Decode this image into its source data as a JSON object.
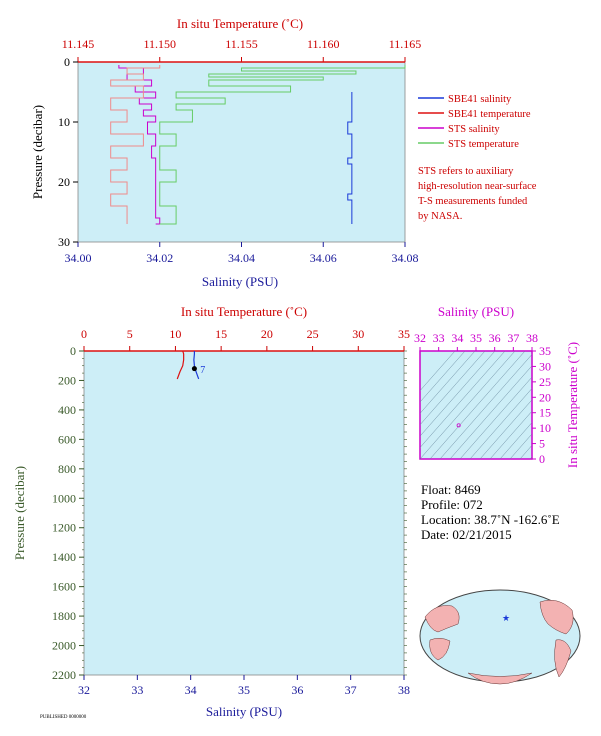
{
  "chart_data": [
    {
      "type": "line",
      "top_axis": {
        "label": "In situ Temperature (˚C)",
        "ticks": [
          "11.145",
          "11.150",
          "11.155",
          "11.160",
          "11.165"
        ],
        "range": [
          11.145,
          11.165
        ]
      },
      "bottom_axis": {
        "label": "Salinity (PSU)",
        "ticks": [
          "34.00",
          "34.02",
          "34.04",
          "34.06",
          "34.08"
        ],
        "range": [
          34.0,
          34.08
        ]
      },
      "left_axis": {
        "label": "Pressure (decibar)",
        "ticks": [
          "0",
          "10",
          "20",
          "30"
        ],
        "range": [
          0,
          30
        ],
        "inverted": true
      },
      "legend": {
        "placement": "right",
        "entries": [
          {
            "name": "SBE41 salinity",
            "color": "#1a3ad8"
          },
          {
            "name": "SBE41 temperature",
            "color": "#dd1111"
          },
          {
            "name": "STS salinity",
            "color": "#cc00cc"
          },
          {
            "name": "STS temperature",
            "color": "#66cc66"
          }
        ]
      },
      "note_lines": [
        "STS refers to auxiliary",
        "high-resolution near-surface",
        "T-S measurements funded",
        "by NASA."
      ],
      "series": [
        {
          "name": "SBE41 salinity",
          "x": [
            34.067,
            34.067,
            34.067,
            34.066,
            34.067,
            34.067,
            34.066,
            34.067,
            34.067,
            34.067,
            34.066,
            34.067,
            34.067,
            34.067,
            34.067
          ],
          "y": [
            5,
            6,
            8,
            10,
            12,
            14,
            16,
            17,
            18,
            20,
            22,
            23,
            24,
            26,
            27
          ]
        },
        {
          "name": "STS salinity",
          "x": [
            34.01,
            34.016,
            34.012,
            34.018,
            34.014,
            34.019,
            34.015,
            34.018,
            34.016,
            34.019,
            34.017,
            34.019,
            34.018,
            34.019,
            34.019,
            34.019,
            34.019,
            34.019,
            34.02,
            34.019
          ],
          "y": [
            0.5,
            1,
            2,
            3,
            4,
            5,
            6,
            7,
            8,
            9,
            10,
            12,
            14,
            16,
            18,
            20,
            22,
            24,
            26,
            27
          ]
        },
        {
          "name": "STS temperature",
          "x": [
            11.165,
            11.155,
            11.162,
            11.153,
            11.16,
            11.153,
            11.158,
            11.151,
            11.154,
            11.151,
            11.152,
            11.15,
            11.151,
            11.15,
            11.15,
            11.151,
            11.15,
            11.15,
            11.151,
            11.15
          ],
          "y": [
            0.5,
            1,
            1.5,
            2,
            2.5,
            3,
            4,
            5,
            6,
            7,
            8,
            10,
            12,
            14,
            16,
            18,
            20,
            22,
            24,
            27
          ]
        },
        {
          "name": "STS temperature (pink)",
          "x": [
            11.15,
            11.148,
            11.149,
            11.147,
            11.149,
            11.147,
            11.148,
            11.147,
            11.149,
            11.147,
            11.148,
            11.147,
            11.148,
            11.147,
            11.148,
            11.148,
            11.148
          ],
          "y": [
            0.5,
            1,
            2,
            3,
            4,
            6,
            8,
            10,
            12,
            14,
            16,
            18,
            20,
            22,
            24,
            26,
            27
          ]
        }
      ]
    },
    {
      "type": "line",
      "top_axis": {
        "label": "In situ Temperature (˚C)",
        "ticks": [
          "0",
          "5",
          "10",
          "15",
          "20",
          "25",
          "30",
          "35"
        ],
        "range": [
          0,
          35
        ]
      },
      "bottom_axis": {
        "label": "Salinity (PSU)",
        "ticks": [
          "32",
          "33",
          "34",
          "35",
          "36",
          "37",
          "38"
        ],
        "range": [
          32,
          38
        ]
      },
      "left_axis": {
        "label": "Pressure (decibar)",
        "ticks": [
          "0",
          "200",
          "400",
          "600",
          "800",
          "1000",
          "1200",
          "1400",
          "1600",
          "1800",
          "2000",
          "2200"
        ],
        "range": [
          0,
          2200
        ],
        "inverted": true
      },
      "series": [
        {
          "name": "temperature",
          "x": [
            10.8,
            10.9,
            10.9,
            10.8,
            10.5,
            10.2
          ],
          "y": [
            0,
            20,
            60,
            100,
            140,
            190
          ]
        },
        {
          "name": "salinity",
          "x": [
            34.07,
            34.07,
            34.06,
            34.07,
            34.1,
            34.15
          ],
          "y": [
            0,
            20,
            60,
            100,
            140,
            190
          ]
        }
      ],
      "annotation": "7"
    },
    {
      "type": "scatter",
      "top_axis": {
        "label": "Salinity (PSU)",
        "ticks": [
          "32",
          "33",
          "34",
          "35",
          "36",
          "37",
          "38"
        ],
        "range": [
          32,
          38
        ]
      },
      "right_axis": {
        "label": "In situ Temperature (˚C)",
        "ticks": [
          "0",
          "5",
          "10",
          "15",
          "20",
          "25",
          "30",
          "35"
        ],
        "range": [
          0,
          35
        ]
      },
      "points": [
        {
          "x": 34.07,
          "y": 10.9
        }
      ]
    }
  ],
  "float_info": {
    "float": "Float: 8469",
    "profile": "Profile: 072",
    "location": "Location: 38.7˚N -162.6˚E",
    "date": "Date: 02/21/2015"
  },
  "footer_code": "PUBLISHED 0000000"
}
